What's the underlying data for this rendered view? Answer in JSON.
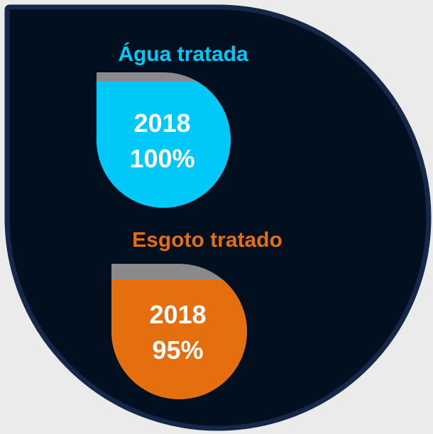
{
  "items": [
    {
      "title": "Água tratada",
      "year": "2018",
      "value": 100,
      "value_label": "100%",
      "color": "#00c8f8"
    },
    {
      "title": "Esgoto tratado",
      "year": "2018",
      "value": 95,
      "value_label": "95%",
      "color": "#e56e0f"
    }
  ]
}
